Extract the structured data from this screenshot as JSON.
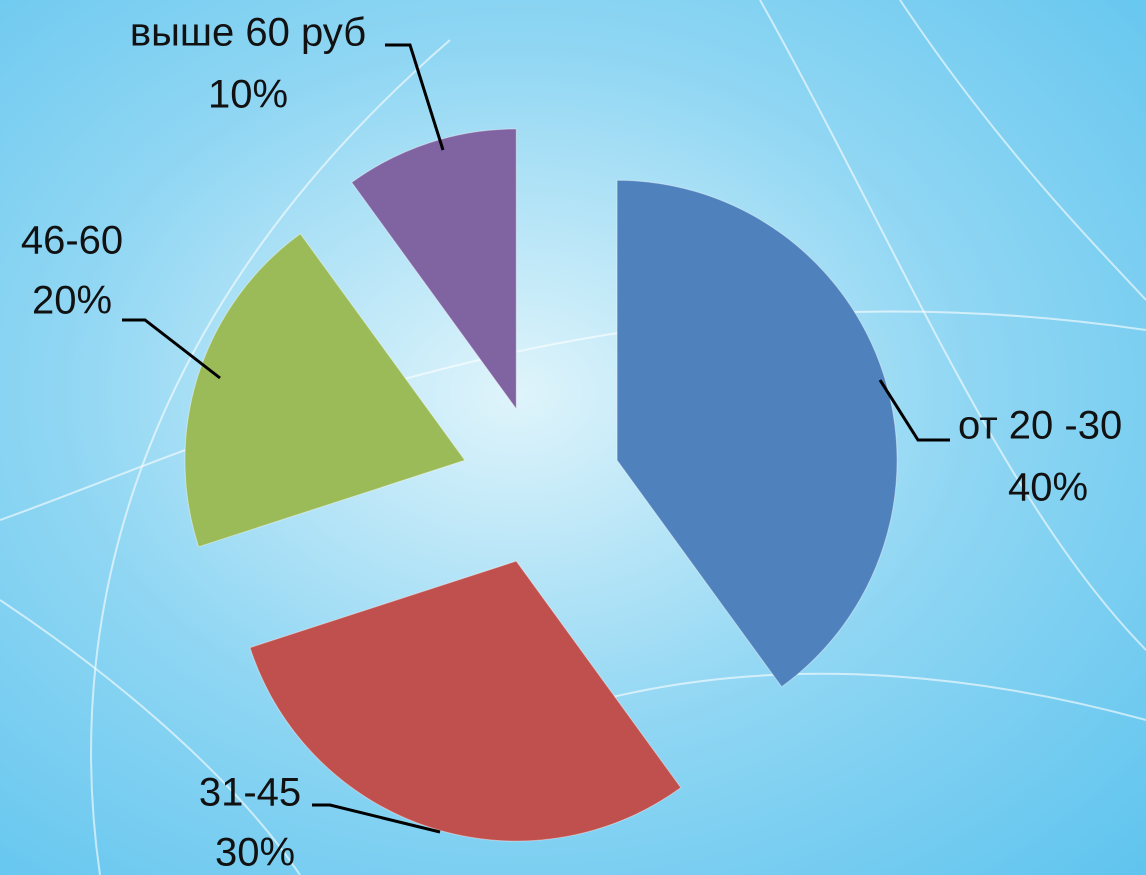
{
  "chart_data": {
    "type": "pie",
    "categories": [
      "от 20 -30",
      "31-45",
      "46-60",
      "выше 60 руб"
    ],
    "values": [
      40,
      30,
      20,
      10
    ],
    "value_labels": [
      "40%",
      "30%",
      "20%",
      "10%"
    ],
    "colors": [
      "#4f81bd",
      "#c0504d",
      "#9bbb59",
      "#8064a2"
    ],
    "exploded": true
  }
}
